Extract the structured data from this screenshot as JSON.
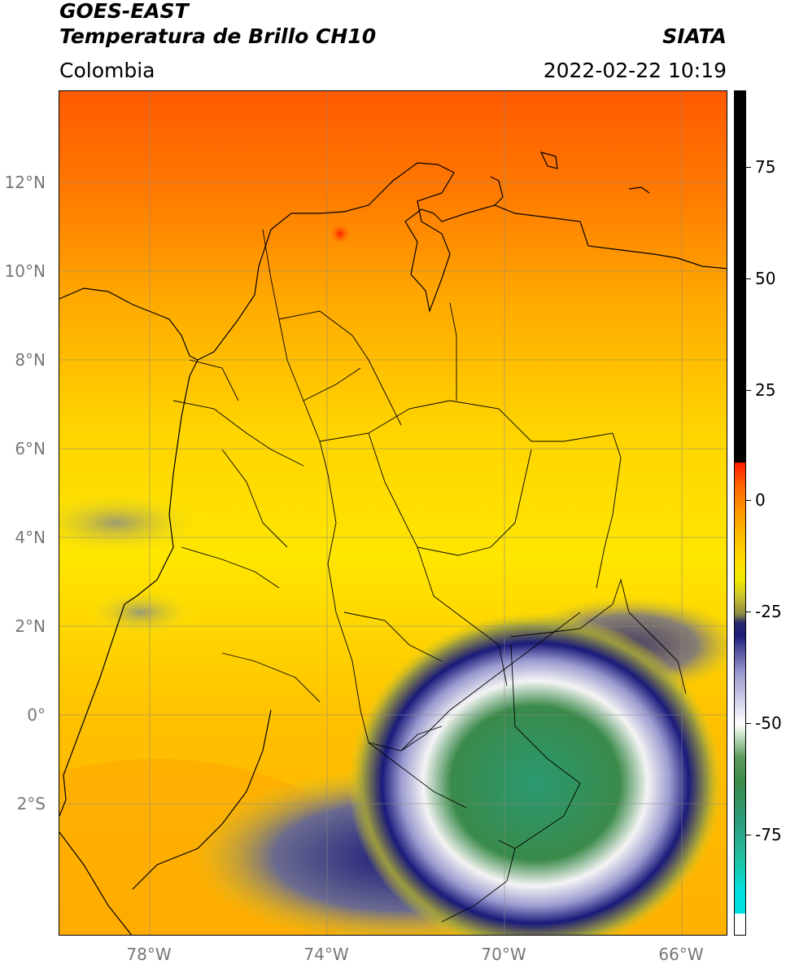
{
  "header": {
    "title_line1": "GOES-EAST",
    "title_line2": "Temperatura de Brillo CH10",
    "organization": "SIATA",
    "region": "Colombia",
    "timestamp": "2022-02-22 10:19"
  },
  "map": {
    "lat_ticks": [
      "12°N",
      "10°N",
      "8°N",
      "6°N",
      "4°N",
      "2°N",
      "0°",
      "2°S"
    ],
    "lon_ticks": [
      "78°W",
      "74°W",
      "70°W",
      "66°W"
    ],
    "colors": {
      "warm_red": "#ff4a00",
      "orange": "#ff9a00",
      "yellow": "#ffea00",
      "olive": "#c8c230",
      "navy": "#1a1a7a",
      "white": "#ffffff",
      "green": "#3a8a4a",
      "teal": "#20c0a0"
    }
  },
  "colorbar": {
    "ticks": [
      "75",
      "50",
      "25",
      "0",
      "-25",
      "-50",
      "-75"
    ]
  }
}
